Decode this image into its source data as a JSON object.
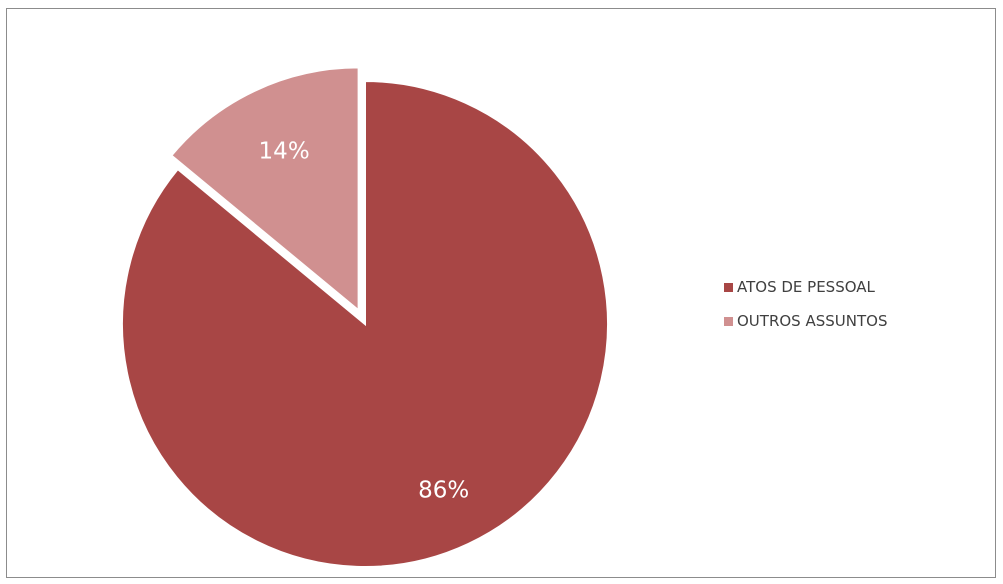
{
  "chart_data": {
    "type": "pie",
    "categories": [
      "ATOS DE PESSOAL",
      "OUTROS ASSUNTOS"
    ],
    "values": [
      86,
      14
    ],
    "labels": [
      "86%",
      "14%"
    ],
    "colors": [
      "#a84645",
      "#d09090"
    ],
    "exploded": [
      false,
      true
    ],
    "legend_position": "right",
    "title": ""
  }
}
